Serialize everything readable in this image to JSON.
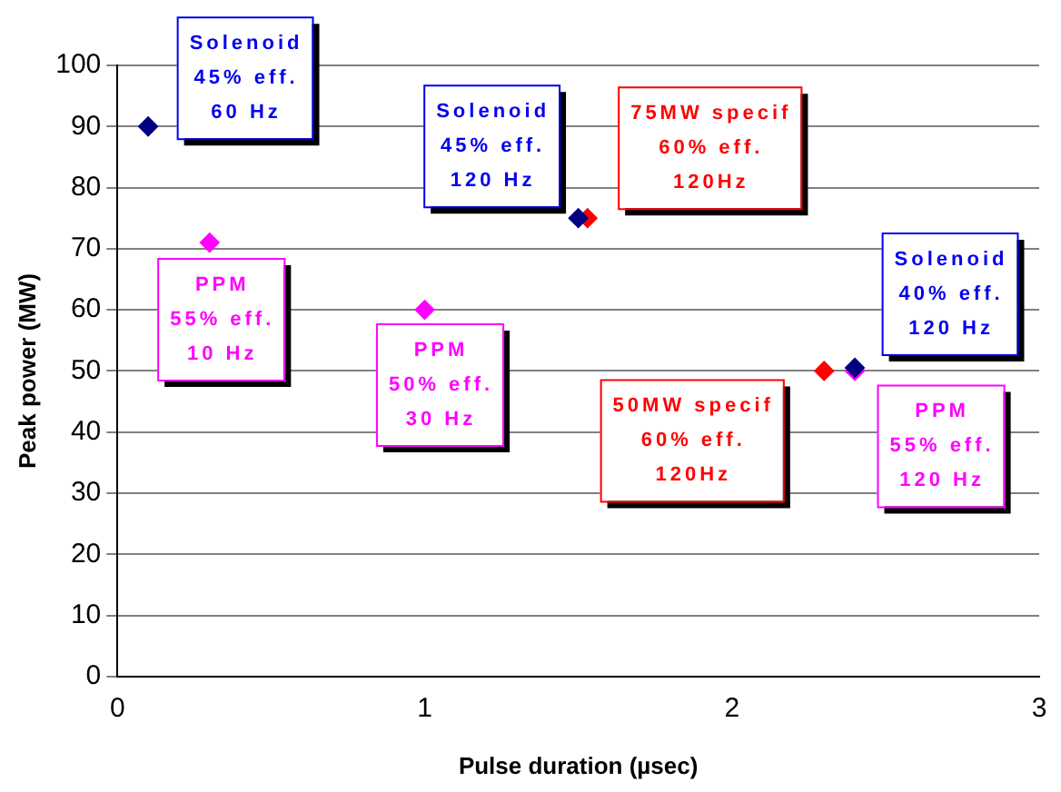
{
  "chart_data": {
    "type": "scatter",
    "xlabel": "Pulse duration (µsec)",
    "ylabel": "Peak power (MW)",
    "xlim": [
      0,
      3
    ],
    "xticks": [
      0,
      1,
      2,
      3
    ],
    "ylim": [
      0,
      100
    ],
    "yticks": [
      0,
      10,
      20,
      30,
      40,
      50,
      60,
      70,
      80,
      90,
      100
    ],
    "grid": "y",
    "legend": false,
    "marker": "diamond",
    "series": [
      {
        "color": "#ff00ff",
        "x": [
          0.3,
          1.0,
          2.4
        ],
        "values": [
          71,
          60,
          50
        ]
      },
      {
        "color": "#ff0000",
        "x": [
          1.53,
          2.3
        ],
        "values": [
          75,
          50
        ]
      },
      {
        "color": "#000080",
        "x": [
          0.1,
          1.5,
          2.4
        ],
        "values": [
          90,
          75,
          50.5
        ]
      }
    ],
    "annotations": [
      {
        "text": "Solenoid\n45% eff.\n60 Hz",
        "x": 0.1,
        "y": 90
      },
      {
        "text": "Solenoid\n45% eff.\n120 Hz",
        "x": 1.5,
        "y": 75
      },
      {
        "text": "75MW specif\n60% eff.\n120Hz",
        "x": 1.53,
        "y": 75
      },
      {
        "text": "Solenoid\n40% eff.\n120 Hz",
        "x": 2.4,
        "y": 50.5
      },
      {
        "text": "PPM\n55% eff.\n10 Hz",
        "x": 0.3,
        "y": 71
      },
      {
        "text": "PPM\n50% eff.\n30 Hz",
        "x": 1.0,
        "y": 60
      },
      {
        "text": "50MW specif\n60% eff.\n120Hz",
        "x": 2.3,
        "y": 50
      },
      {
        "text": "PPM\n55% eff.\n120 Hz",
        "x": 2.4,
        "y": 50
      }
    ]
  }
}
